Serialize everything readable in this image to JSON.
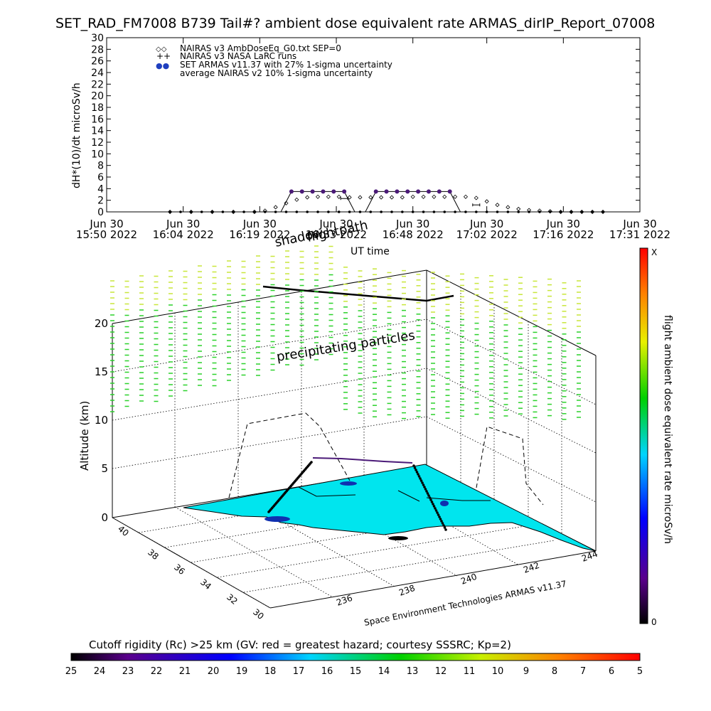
{
  "title": "SET_RAD_FM7008  B739 Tail#? ambient dose equivalent rate ARMAS_dirIP_Report_07008",
  "top_chart": {
    "ylabel": "dH*(10)/dt microSv/h",
    "xlabel": "UT time",
    "legend": [
      {
        "symbol": "◇◇",
        "label": "NAIRAS v3 AmbDoseEq_G0.txt SEP=0"
      },
      {
        "symbol": "++",
        "label": "NAIRAS v3 NASA LaRC runs"
      },
      {
        "symbol": "●●",
        "label": "SET ARMAS v11.37 with 27% 1-sigma uncertainty"
      },
      {
        "symbol": "",
        "label": "average NAIRAS v2 10% 1-sigma uncertainty"
      }
    ],
    "x_ticks": [
      {
        "line1": "Jun 30",
        "line2": "15:50 2022"
      },
      {
        "line1": "Jun 30",
        "line2": "16:04 2022"
      },
      {
        "line1": "Jun 30",
        "line2": "16:19 2022"
      },
      {
        "line1": "Jun 30",
        "line2": "16:33 2022"
      },
      {
        "line1": "Jun 30",
        "line2": "16:48 2022"
      },
      {
        "line1": "Jun 30",
        "line2": "17:02 2022"
      },
      {
        "line1": "Jun 30",
        "line2": "17:16 2022"
      },
      {
        "line1": "Jun 30",
        "line2": "17:31 2022"
      }
    ],
    "y_ticks": [
      "0",
      "2",
      "4",
      "6",
      "8",
      "10",
      "12",
      "14",
      "16",
      "18",
      "20",
      "22",
      "24",
      "26",
      "28",
      "30"
    ]
  },
  "chart_data": [
    {
      "type": "line",
      "title": "SET_RAD_FM7008  B739 Tail#? ambient dose equivalent rate ARMAS_dirIP_Report_07008",
      "xlabel": "UT time",
      "ylabel": "dH*(10)/dt microSv/h",
      "ylim": [
        0,
        30
      ],
      "xlim": [
        "2022-06-30 15:50",
        "2022-06-30 17:31"
      ],
      "grid": false,
      "legend_position": "top-left",
      "x_minutes_from_1550": true,
      "series": [
        {
          "name": "SET ARMAS v11.37 with 27% 1-sigma uncertainty",
          "x": [
            12,
            14,
            16,
            18,
            20,
            22,
            24,
            26,
            28,
            30,
            32,
            34,
            36,
            38,
            40,
            42,
            44,
            46,
            48,
            50,
            52,
            54,
            56,
            58,
            60,
            62,
            64,
            66,
            68,
            70,
            72,
            74,
            76,
            78,
            80,
            82,
            84,
            86,
            88,
            90,
            92,
            94
          ],
          "y": [
            0,
            0,
            0,
            0,
            0,
            0,
            0,
            0,
            0,
            0,
            0,
            0,
            0,
            0,
            0,
            0,
            0,
            0,
            0,
            0,
            0,
            0,
            0,
            0,
            0,
            0,
            0,
            0,
            0,
            0,
            0,
            0,
            0,
            0,
            0,
            0,
            0,
            0,
            0,
            0,
            0,
            0
          ]
        },
        {
          "name": "NAIRAS v3 AmbDoseEq_G0.txt SEP=0",
          "x": [
            12,
            16,
            20,
            24,
            28,
            30,
            32,
            34,
            36,
            38,
            40,
            42,
            44,
            46,
            48,
            50,
            52,
            54,
            56,
            58,
            60,
            62,
            64,
            66,
            68,
            70,
            72,
            74,
            76,
            78,
            80,
            82,
            84,
            86,
            88,
            90,
            92,
            94
          ],
          "y": [
            0,
            0,
            0,
            0,
            0,
            0.2,
            0.8,
            1.5,
            2.1,
            2.5,
            2.6,
            2.6,
            2.6,
            2.5,
            2.5,
            2.5,
            2.5,
            2.5,
            2.5,
            2.6,
            2.6,
            2.6,
            2.6,
            2.6,
            2.6,
            2.4,
            1.8,
            1.2,
            0.8,
            0.5,
            0.3,
            0.2,
            0.1,
            0,
            0,
            0,
            0,
            0
          ]
        },
        {
          "name": "NAIRAS v3 NASA LaRC runs",
          "x": [
            45,
            70
          ],
          "y": [
            2.3,
            1.2
          ]
        },
        {
          "name": "",
          "x": [
            35,
            37,
            39,
            41,
            43,
            45,
            51,
            53,
            55,
            57,
            59,
            61,
            63,
            65
          ],
          "y": [
            3.5,
            3.5,
            3.5,
            3.5,
            3.5,
            3.5,
            3.5,
            3.5,
            3.5,
            3.5,
            3.5,
            3.5,
            3.5,
            3.5
          ]
        }
      ]
    },
    {
      "type": "heatmap",
      "title": "Cutoff rigidity (Rc) >25 km (GV: red = greatest hazard; courtesy SSSRC; Kp=2)",
      "xlabel": "",
      "ylabel": "Altitude (km)",
      "zlim": [
        0,
        20
      ],
      "x_ticks": [
        "236",
        "238",
        "240",
        "242",
        "244"
      ],
      "y_ticks": [
        "30",
        "32",
        "34",
        "36",
        "38",
        "40"
      ],
      "z_ticks": [
        "0",
        "5",
        "10",
        "15",
        "20"
      ],
      "colorbar_ticks": [
        "25",
        "24",
        "23",
        "22",
        "21",
        "20",
        "19",
        "18",
        "17",
        "16",
        "15",
        "14",
        "13",
        "12",
        "11",
        "10",
        "9",
        "8",
        "7",
        "6",
        "5"
      ],
      "right_colorbar_top": "X",
      "right_colorbar_bottom": "0"
    }
  ],
  "plot3d": {
    "shadow_label": "shadow",
    "flightpath_label": "flightpath",
    "particles_label": "precipitating particles",
    "altitude_label": "Altitude (km)",
    "credit": "Space Environment Technologies ARMAS v11.37",
    "z_ticks": [
      "0",
      "5",
      "10",
      "15",
      "20"
    ],
    "lat_ticks": [
      "30",
      "32",
      "34",
      "36",
      "38",
      "40"
    ],
    "lon_ticks": [
      "236",
      "238",
      "240",
      "242",
      "244"
    ]
  },
  "right_colorbar": {
    "label": "flight ambient dose equivalent rate microSv/h",
    "top": "X",
    "bottom": "0"
  },
  "bottom_colorbar": {
    "label": "Cutoff rigidity (Rc) >25 km (GV: red = greatest hazard; courtesy SSSRC; Kp=2)",
    "ticks": [
      "25",
      "24",
      "23",
      "22",
      "21",
      "20",
      "19",
      "18",
      "17",
      "16",
      "15",
      "14",
      "13",
      "12",
      "11",
      "10",
      "9",
      "8",
      "7",
      "6",
      "5"
    ]
  },
  "colors": {
    "armas": "#4b1a78",
    "surface": "#00e5ee",
    "particles_green": "#2bd12b",
    "particles_yellow": "#c8e63a"
  }
}
